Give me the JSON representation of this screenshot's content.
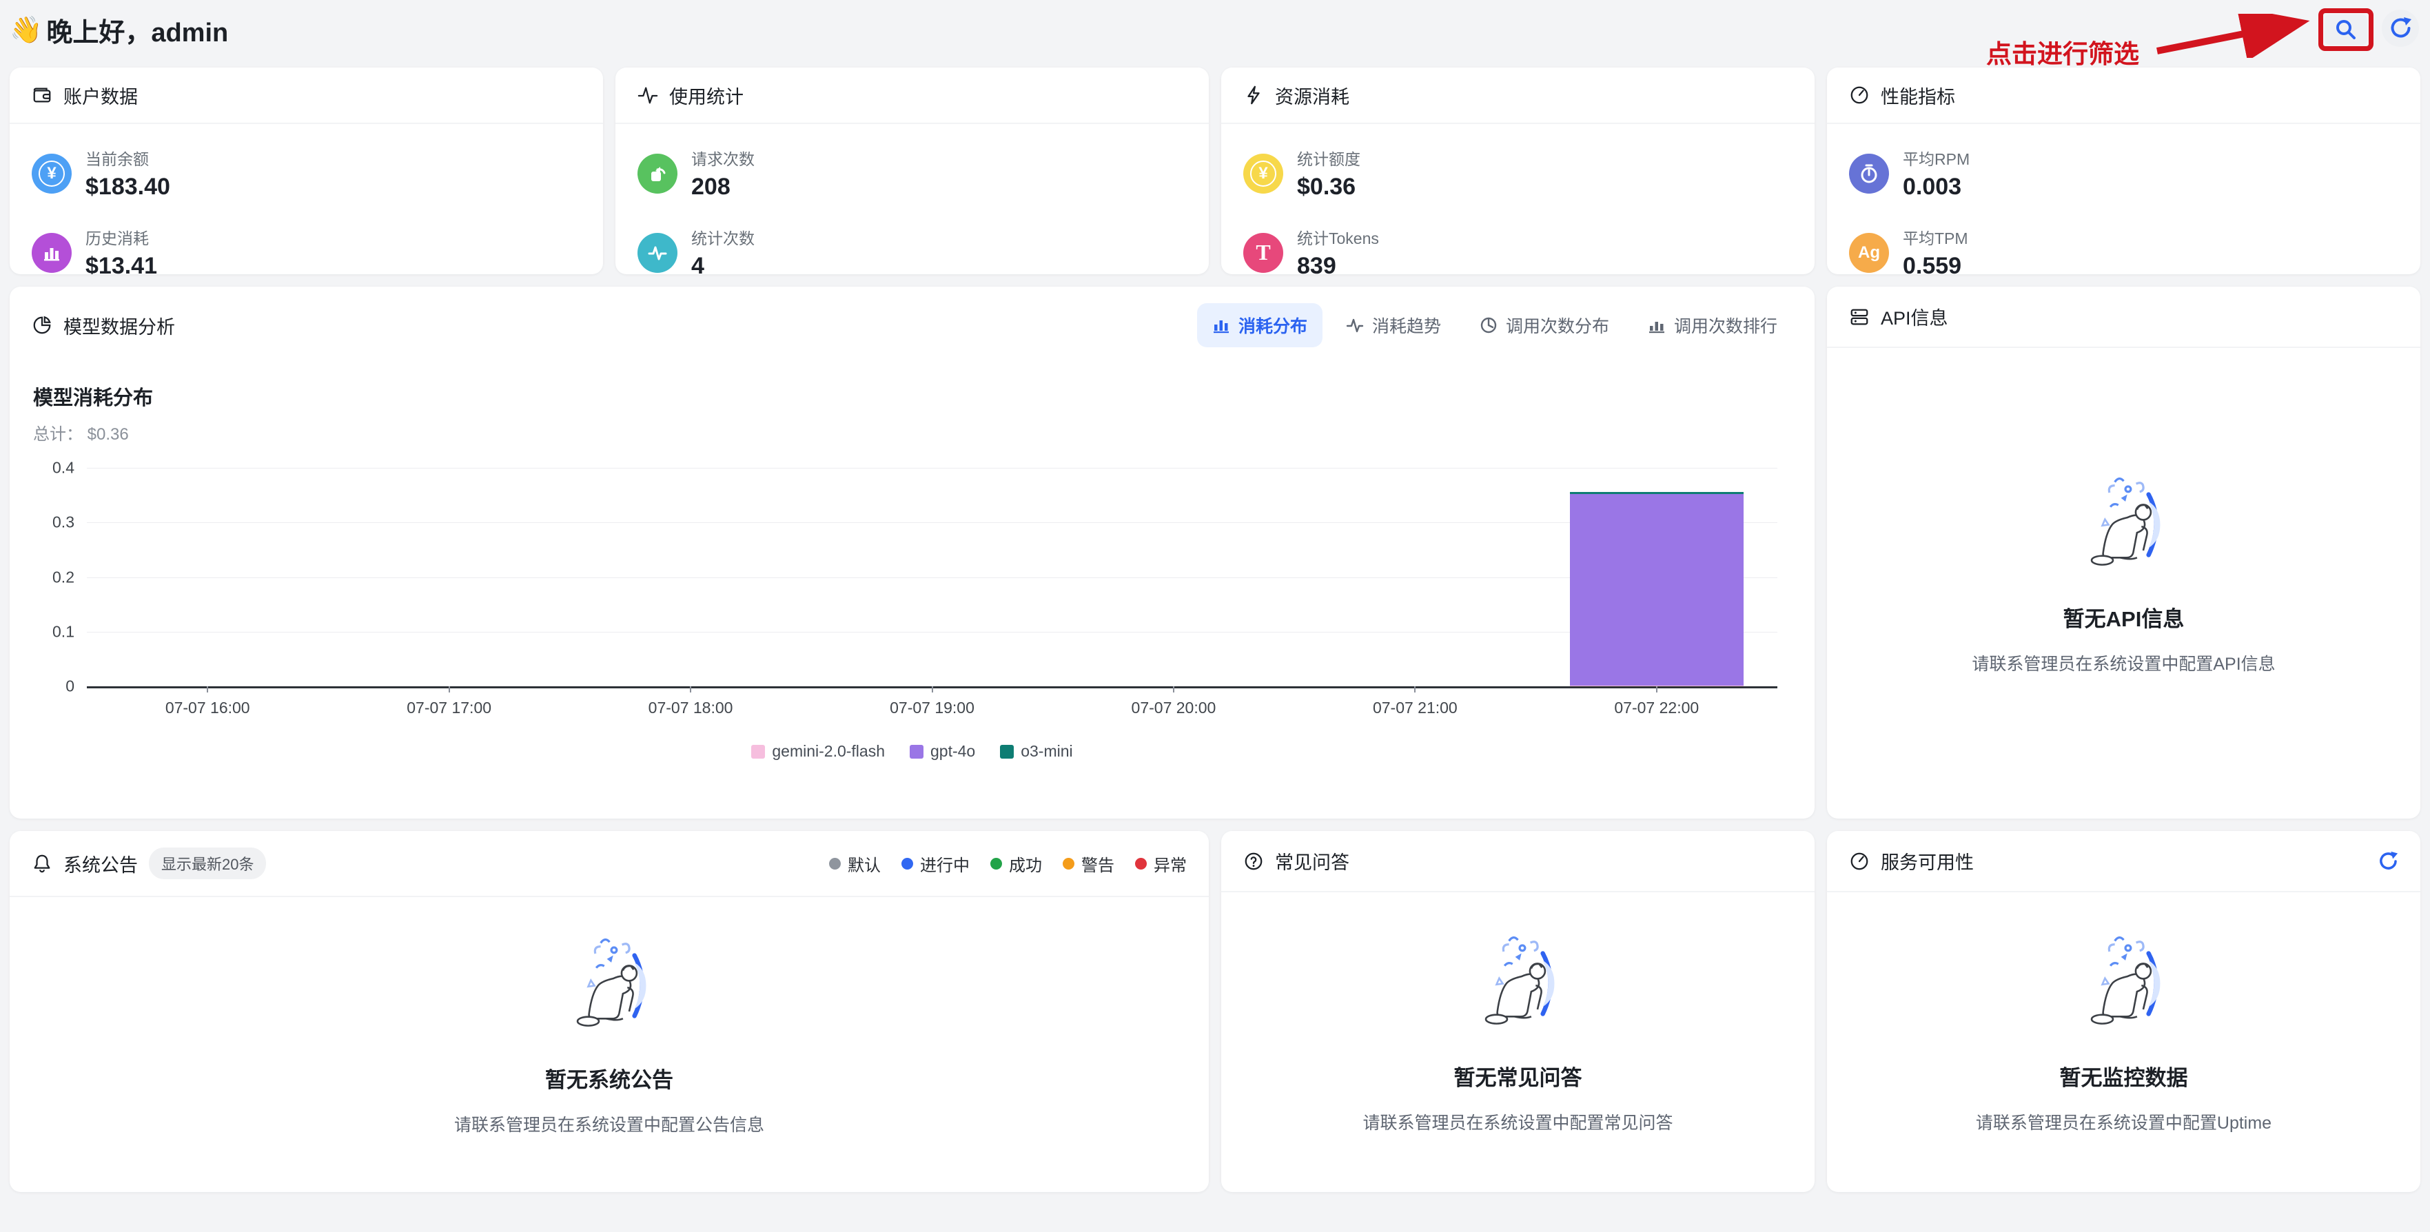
{
  "page": {
    "greeting_emoji": "👋",
    "greeting_text": "晚上好，admin"
  },
  "topbar": {
    "filter_hint": "点击进行筛选"
  },
  "accent": {
    "blue": "#2b63f0",
    "red": "#d2141e"
  },
  "stat_cards": [
    {
      "title": "账户数据",
      "icon": "wallet-icon",
      "stats": [
        {
          "label": "当前余额",
          "value": "$183.40",
          "icon": "currency-circle-icon",
          "color": "#4da0f5"
        },
        {
          "label": "历史消耗",
          "value": "$13.41",
          "icon": "histogram-icon",
          "color": "#b44fd8"
        }
      ]
    },
    {
      "title": "使用统计",
      "icon": "activity-icon",
      "stats": [
        {
          "label": "请求次数",
          "value": "208",
          "icon": "request-box-icon",
          "color": "#58c25f"
        },
        {
          "label": "统计次数",
          "value": "4",
          "icon": "pulse-icon",
          "color": "#3eb8ca"
        }
      ]
    },
    {
      "title": "资源消耗",
      "icon": "bolt-icon",
      "stats": [
        {
          "label": "统计额度",
          "value": "$0.36",
          "icon": "yen-coin-icon",
          "color": "#f7d84a"
        },
        {
          "label": "统计Tokens",
          "value": "839",
          "icon": "token-t-icon",
          "color": "#e7487b"
        }
      ]
    },
    {
      "title": "性能指标",
      "icon": "gauge-icon",
      "stats": [
        {
          "label": "平均RPM",
          "value": "0.003",
          "icon": "stopwatch-icon",
          "color": "#6673d6"
        },
        {
          "label": "平均TPM",
          "value": "0.559",
          "icon": "ag-icon",
          "color": "#f6ab4a"
        }
      ]
    }
  ],
  "model_panel": {
    "title": "模型数据分析",
    "tabs": [
      {
        "label": "消耗分布",
        "active": true
      },
      {
        "label": "消耗趋势",
        "active": false
      },
      {
        "label": "调用次数分布",
        "active": false
      },
      {
        "label": "调用次数排行",
        "active": false
      }
    ]
  },
  "chart_data": {
    "type": "bar",
    "stacked": true,
    "title": "模型消耗分布",
    "total_label": "总计： ",
    "total_value": "$0.36",
    "categories": [
      "07-07 16:00",
      "07-07 17:00",
      "07-07 18:00",
      "07-07 19:00",
      "07-07 20:00",
      "07-07 21:00",
      "07-07 22:00"
    ],
    "series": [
      {
        "name": "gemini-2.0-flash",
        "color": "#f6bede",
        "values": [
          0,
          0,
          0,
          0,
          0,
          0,
          0.001
        ]
      },
      {
        "name": "gpt-4o",
        "color": "#9a76e6",
        "values": [
          0,
          0,
          0,
          0,
          0,
          0,
          0.351
        ]
      },
      {
        "name": "o3-mini",
        "color": "#0e7d73",
        "values": [
          0,
          0,
          0,
          0,
          0,
          0,
          0.004
        ]
      }
    ],
    "ylim": [
      0,
      0.4
    ],
    "yticks": [
      0,
      0.1,
      0.2,
      0.3,
      0.4
    ],
    "grid": true,
    "legend_position": "bottom"
  },
  "api_card": {
    "title": "API信息",
    "empty_title": "暂无API信息",
    "empty_desc": "请联系管理员在系统设置中配置API信息"
  },
  "announcements": {
    "title": "系统公告",
    "badge": "显示最新20条",
    "legend": [
      {
        "label": "默认",
        "color": "#8f959e"
      },
      {
        "label": "进行中",
        "color": "#3168f2"
      },
      {
        "label": "成功",
        "color": "#22a349"
      },
      {
        "label": "警告",
        "color": "#f49c1a"
      },
      {
        "label": "异常",
        "color": "#e0343c"
      }
    ],
    "empty_title": "暂无系统公告",
    "empty_desc": "请联系管理员在系统设置中配置公告信息"
  },
  "faq_card": {
    "title": "常见问答",
    "empty_title": "暂无常见问答",
    "empty_desc": "请联系管理员在系统设置中配置常见问答"
  },
  "uptime_card": {
    "title": "服务可用性",
    "empty_title": "暂无监控数据",
    "empty_desc": "请联系管理员在系统设置中配置Uptime"
  }
}
